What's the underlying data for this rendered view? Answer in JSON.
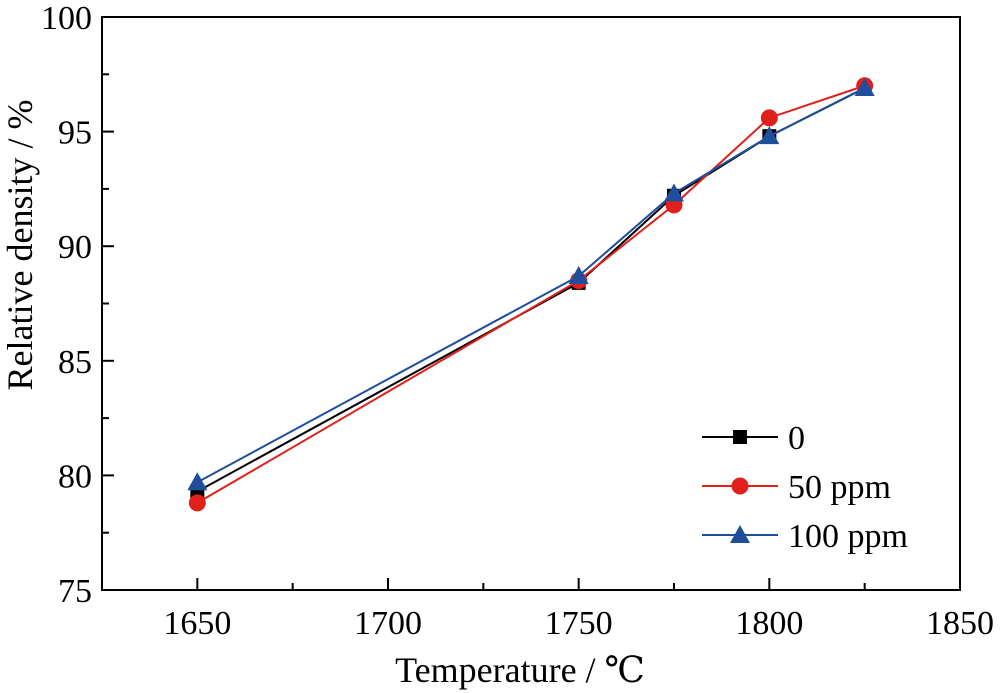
{
  "chart_data": {
    "type": "line",
    "xlabel": "Temperature / ℃",
    "ylabel": "Relative density / %",
    "xlim": [
      1625,
      1850
    ],
    "ylim": [
      75,
      100
    ],
    "x_ticks": [
      1650,
      1700,
      1750,
      1800,
      1850
    ],
    "y_ticks": [
      75,
      80,
      85,
      90,
      95,
      100
    ],
    "x_minor_step": 25,
    "y_minor_step": 2.5,
    "grid": false,
    "legend_position": "bottom-right",
    "series": [
      {
        "name": "0",
        "color": "#000000",
        "marker": "square",
        "x": [
          1650,
          1750,
          1775,
          1800,
          1825
        ],
        "y": [
          79.3,
          88.4,
          92.2,
          94.8,
          96.9
        ]
      },
      {
        "name": "50 ppm",
        "color": "#e0201b",
        "marker": "circle",
        "x": [
          1650,
          1750,
          1775,
          1800,
          1825
        ],
        "y": [
          78.8,
          88.5,
          91.8,
          95.6,
          97.0
        ]
      },
      {
        "name": "100 ppm",
        "color": "#1f4e9c",
        "marker": "triangle",
        "x": [
          1650,
          1750,
          1775,
          1800,
          1825
        ],
        "y": [
          79.7,
          88.7,
          92.3,
          94.8,
          96.9
        ]
      }
    ]
  }
}
